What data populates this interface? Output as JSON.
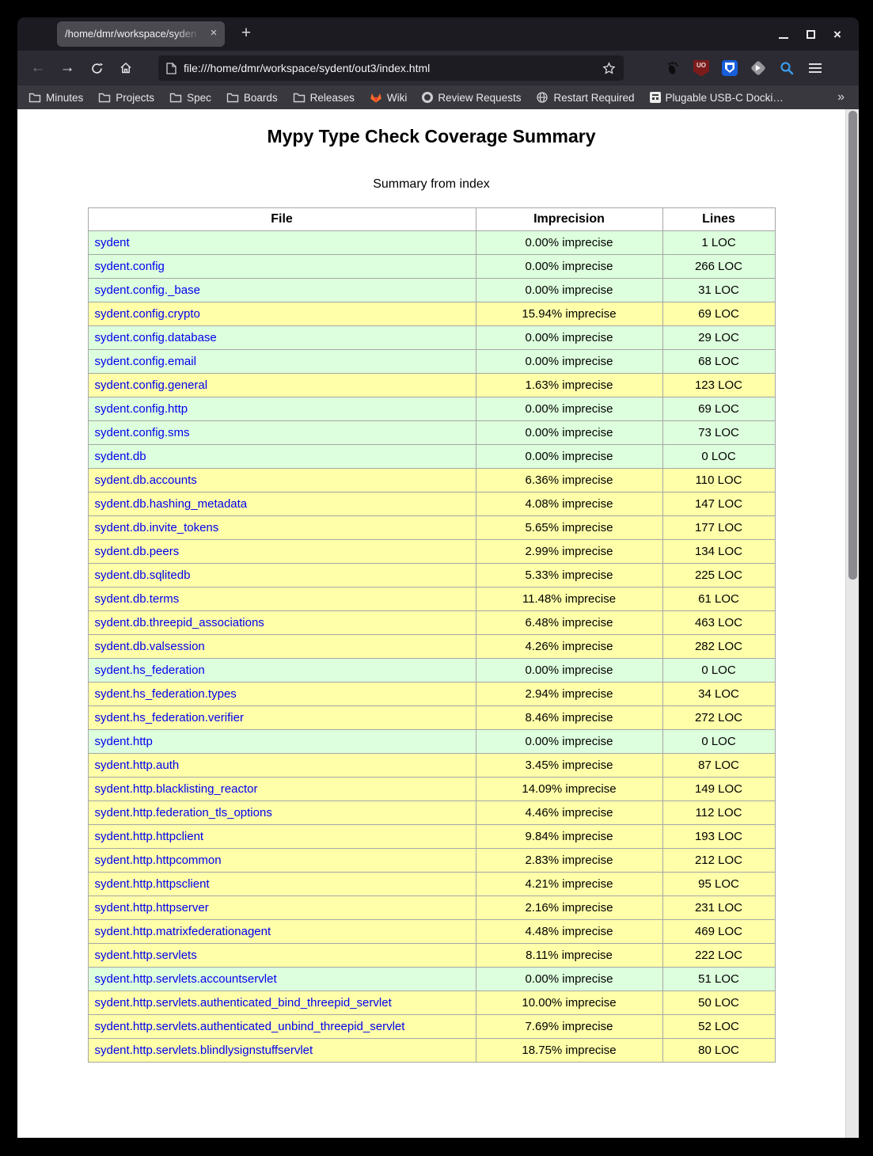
{
  "browser": {
    "tab_title": "/home/dmr/workspace/syden",
    "tab_close_glyph": "×",
    "new_tab_glyph": "+",
    "window_close_glyph": "×",
    "back_glyph": "←",
    "forward_glyph": "→",
    "overflow_glyph": "»",
    "ublock_glyph": "UO",
    "url": "file:///home/dmr/workspace/sydent/out3/index.html",
    "bookmarks": [
      {
        "label": "Minutes",
        "icon": "folder-icon"
      },
      {
        "label": "Projects",
        "icon": "folder-icon"
      },
      {
        "label": "Spec",
        "icon": "folder-icon"
      },
      {
        "label": "Boards",
        "icon": "folder-icon"
      },
      {
        "label": "Releases",
        "icon": "folder-icon"
      },
      {
        "label": "Wiki",
        "icon": "gitlab-icon"
      },
      {
        "label": "Review Requests",
        "icon": "github-icon"
      },
      {
        "label": "Restart Required",
        "icon": "globe-icon"
      },
      {
        "label": "Plugable USB-C Docki…",
        "icon": "dock-icon"
      }
    ]
  },
  "page": {
    "title": "Mypy Type Check Coverage Summary",
    "subtitle": "Summary from index",
    "table": {
      "headers": [
        "File",
        "Imprecision",
        "Lines"
      ],
      "rows": [
        {
          "file": "sydent",
          "imprecision": "0.00% imprecise",
          "lines": "1 LOC",
          "quality": "good"
        },
        {
          "file": "sydent.config",
          "imprecision": "0.00% imprecise",
          "lines": "266 LOC",
          "quality": "good"
        },
        {
          "file": "sydent.config._base",
          "imprecision": "0.00% imprecise",
          "lines": "31 LOC",
          "quality": "good"
        },
        {
          "file": "sydent.config.crypto",
          "imprecision": "15.94% imprecise",
          "lines": "69 LOC",
          "quality": "warn"
        },
        {
          "file": "sydent.config.database",
          "imprecision": "0.00% imprecise",
          "lines": "29 LOC",
          "quality": "good"
        },
        {
          "file": "sydent.config.email",
          "imprecision": "0.00% imprecise",
          "lines": "68 LOC",
          "quality": "good"
        },
        {
          "file": "sydent.config.general",
          "imprecision": "1.63% imprecise",
          "lines": "123 LOC",
          "quality": "warn"
        },
        {
          "file": "sydent.config.http",
          "imprecision": "0.00% imprecise",
          "lines": "69 LOC",
          "quality": "good"
        },
        {
          "file": "sydent.config.sms",
          "imprecision": "0.00% imprecise",
          "lines": "73 LOC",
          "quality": "good"
        },
        {
          "file": "sydent.db",
          "imprecision": "0.00% imprecise",
          "lines": "0 LOC",
          "quality": "good"
        },
        {
          "file": "sydent.db.accounts",
          "imprecision": "6.36% imprecise",
          "lines": "110 LOC",
          "quality": "warn"
        },
        {
          "file": "sydent.db.hashing_metadata",
          "imprecision": "4.08% imprecise",
          "lines": "147 LOC",
          "quality": "warn"
        },
        {
          "file": "sydent.db.invite_tokens",
          "imprecision": "5.65% imprecise",
          "lines": "177 LOC",
          "quality": "warn"
        },
        {
          "file": "sydent.db.peers",
          "imprecision": "2.99% imprecise",
          "lines": "134 LOC",
          "quality": "warn"
        },
        {
          "file": "sydent.db.sqlitedb",
          "imprecision": "5.33% imprecise",
          "lines": "225 LOC",
          "quality": "warn"
        },
        {
          "file": "sydent.db.terms",
          "imprecision": "11.48% imprecise",
          "lines": "61 LOC",
          "quality": "warn"
        },
        {
          "file": "sydent.db.threepid_associations",
          "imprecision": "6.48% imprecise",
          "lines": "463 LOC",
          "quality": "warn"
        },
        {
          "file": "sydent.db.valsession",
          "imprecision": "4.26% imprecise",
          "lines": "282 LOC",
          "quality": "warn"
        },
        {
          "file": "sydent.hs_federation",
          "imprecision": "0.00% imprecise",
          "lines": "0 LOC",
          "quality": "good"
        },
        {
          "file": "sydent.hs_federation.types",
          "imprecision": "2.94% imprecise",
          "lines": "34 LOC",
          "quality": "warn"
        },
        {
          "file": "sydent.hs_federation.verifier",
          "imprecision": "8.46% imprecise",
          "lines": "272 LOC",
          "quality": "warn"
        },
        {
          "file": "sydent.http",
          "imprecision": "0.00% imprecise",
          "lines": "0 LOC",
          "quality": "good"
        },
        {
          "file": "sydent.http.auth",
          "imprecision": "3.45% imprecise",
          "lines": "87 LOC",
          "quality": "warn"
        },
        {
          "file": "sydent.http.blacklisting_reactor",
          "imprecision": "14.09% imprecise",
          "lines": "149 LOC",
          "quality": "warn"
        },
        {
          "file": "sydent.http.federation_tls_options",
          "imprecision": "4.46% imprecise",
          "lines": "112 LOC",
          "quality": "warn"
        },
        {
          "file": "sydent.http.httpclient",
          "imprecision": "9.84% imprecise",
          "lines": "193 LOC",
          "quality": "warn"
        },
        {
          "file": "sydent.http.httpcommon",
          "imprecision": "2.83% imprecise",
          "lines": "212 LOC",
          "quality": "warn"
        },
        {
          "file": "sydent.http.httpsclient",
          "imprecision": "4.21% imprecise",
          "lines": "95 LOC",
          "quality": "warn"
        },
        {
          "file": "sydent.http.httpserver",
          "imprecision": "2.16% imprecise",
          "lines": "231 LOC",
          "quality": "warn"
        },
        {
          "file": "sydent.http.matrixfederationagent",
          "imprecision": "4.48% imprecise",
          "lines": "469 LOC",
          "quality": "warn"
        },
        {
          "file": "sydent.http.servlets",
          "imprecision": "8.11% imprecise",
          "lines": "222 LOC",
          "quality": "warn"
        },
        {
          "file": "sydent.http.servlets.accountservlet",
          "imprecision": "0.00% imprecise",
          "lines": "51 LOC",
          "quality": "good"
        },
        {
          "file": "sydent.http.servlets.authenticated_bind_threepid_servlet",
          "imprecision": "10.00% imprecise",
          "lines": "50 LOC",
          "quality": "warn"
        },
        {
          "file": "sydent.http.servlets.authenticated_unbind_threepid_servlet",
          "imprecision": "7.69% imprecise",
          "lines": "52 LOC",
          "quality": "warn"
        },
        {
          "file": "sydent.http.servlets.blindlysignstuffservlet",
          "imprecision": "18.75% imprecise",
          "lines": "80 LOC",
          "quality": "warn"
        }
      ]
    }
  },
  "colors": {
    "good_row": "#ddffdd",
    "warn_row": "#ffffaa",
    "link": "#0000ee",
    "accent_search": "#3c9ae8"
  }
}
